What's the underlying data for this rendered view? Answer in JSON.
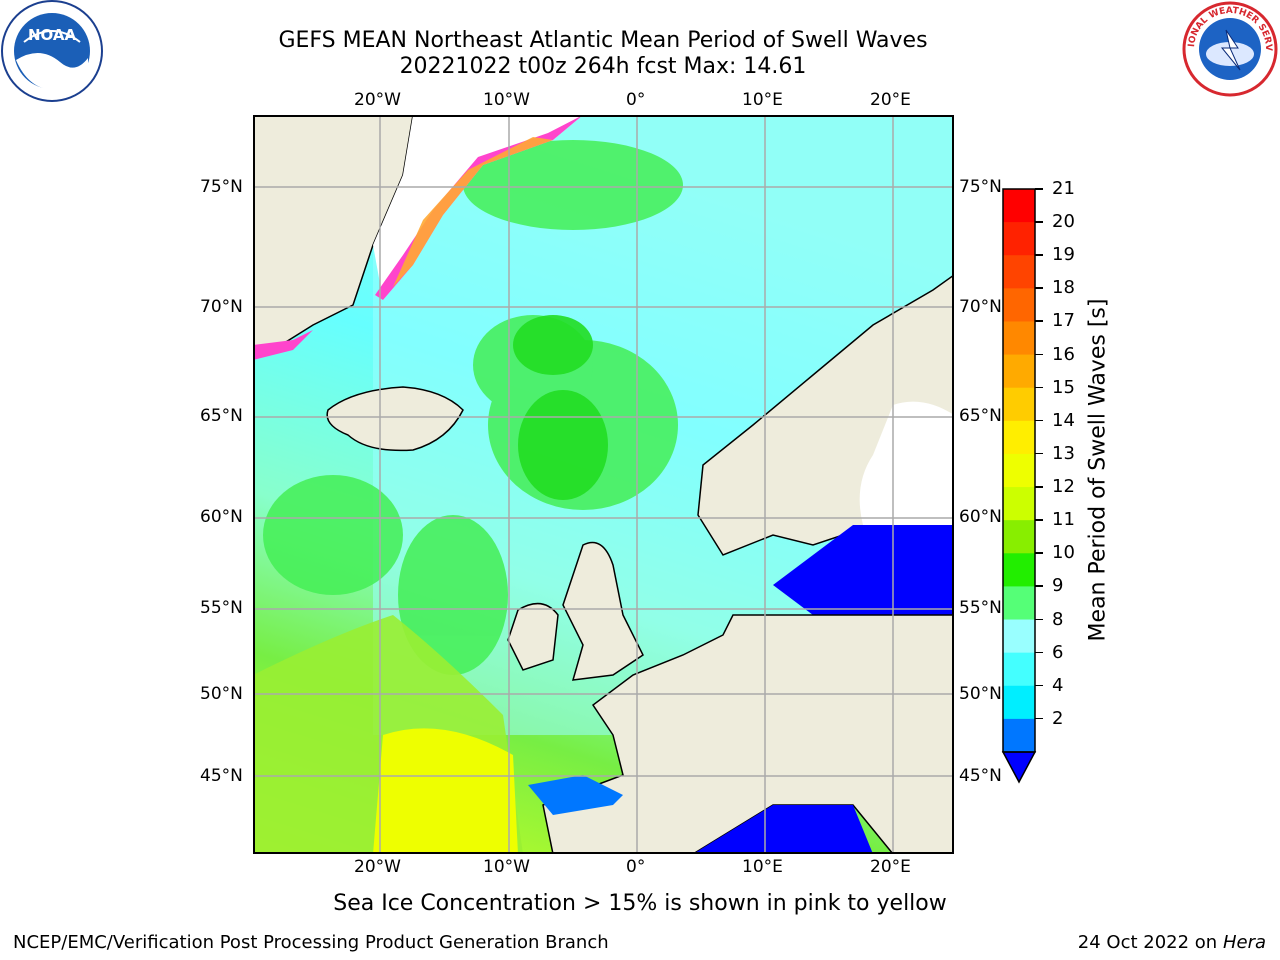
{
  "header": {
    "title": "GEFS MEAN Northeast Atlantic Mean Period of Swell Waves",
    "subtitle": "20221022 t00z 264h fcst   Max: 14.61"
  },
  "logos": {
    "left": "NOAA",
    "right": "NATIONAL WEATHER SERVICE"
  },
  "map": {
    "lon_ticks_top": [
      "20°W",
      "10°W",
      "0°",
      "10°E",
      "20°E"
    ],
    "lon_ticks_bottom": [
      "20°W",
      "10°W",
      "0°",
      "10°E",
      "20°E"
    ],
    "lat_ticks_left": [
      "75°N",
      "70°N",
      "65°N",
      "60°N",
      "55°N",
      "50°N",
      "45°N"
    ],
    "lat_ticks_right": [
      "75°N",
      "70°N",
      "65°N",
      "60°N",
      "55°N",
      "50°N",
      "45°N"
    ],
    "caption": "Sea Ice Concentration > 15% is shown in pink to yellow",
    "colors": {
      "land": "#eeecdc",
      "ocean_swell": [
        "#0000ff",
        "#0077ff",
        "#00eeff",
        "#40fbff",
        "#99ffff",
        "#55ff88",
        "#22ee22",
        "#44dd00",
        "#bbff00",
        "#eeff00",
        "#ffff00",
        "#ffcc00"
      ],
      "sea_ice": [
        "#ff33cc",
        "#ff8844",
        "#ffdd00"
      ]
    }
  },
  "colorbar": {
    "label": "Mean Period of Swell Waves [s]",
    "ticks": [
      "21",
      "20",
      "19",
      "18",
      "17",
      "16",
      "15",
      "14",
      "13",
      "12",
      "11",
      "10",
      "9",
      "8",
      "6",
      "4",
      "2"
    ],
    "colors": [
      "#ff0000",
      "#ff2200",
      "#ff4400",
      "#ff6600",
      "#ff8800",
      "#ffaa00",
      "#ffcc00",
      "#ffee00",
      "#eeff00",
      "#ccff00",
      "#88ee00",
      "#22ee00",
      "#55ff77",
      "#99ffff",
      "#44ffff",
      "#00eeff",
      "#0077ff"
    ],
    "extend_color": "#0000ff"
  },
  "footer": {
    "left": "NCEP/EMC/Verification Post Processing Product Generation Branch",
    "right_date": "24 Oct 2022 on ",
    "right_machine": "Hera"
  }
}
